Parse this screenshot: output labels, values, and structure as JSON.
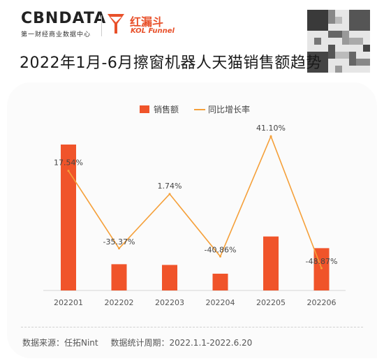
{
  "header": {
    "brand": "CBNDATA",
    "brand_sub": "第一财经商业数据中心",
    "partner_name": "红漏斗",
    "partner_sub": "KOL Funnel",
    "title": "2022年1月-6月擦窗机器人天猫销售额趋势"
  },
  "colors": {
    "bar": "#f0542a",
    "line": "#f5a03a",
    "brand_orange": "#e8502a"
  },
  "chart_data": {
    "type": "bar+line",
    "categories": [
      "202201",
      "202202",
      "202203",
      "202204",
      "202205",
      "202206"
    ],
    "series": [
      {
        "name": "销售额",
        "type": "bar",
        "values": [
          100,
          18,
          17.5,
          11.5,
          37,
          29
        ]
      },
      {
        "name": "同比增长率",
        "type": "line",
        "unit": "%",
        "values": [
          17.54,
          -35.37,
          1.74,
          -40.86,
          41.1,
          -48.87
        ],
        "labels": [
          "17.54%",
          "-35.37%",
          "1.74%",
          "-40.86%",
          "41.10%",
          "-48.87%"
        ]
      }
    ],
    "bar_ylim": [
      0,
      100
    ],
    "line_ylim": [
      -55,
      45
    ],
    "legend_position": "top-center",
    "grid": false
  },
  "footer": {
    "source": "数据来源：任拓Nint",
    "period": "数据统计周期：2022.1.1-2022.6.20"
  },
  "icons": {
    "kol": "funnel-icon",
    "qr": "qr-code-icon"
  }
}
